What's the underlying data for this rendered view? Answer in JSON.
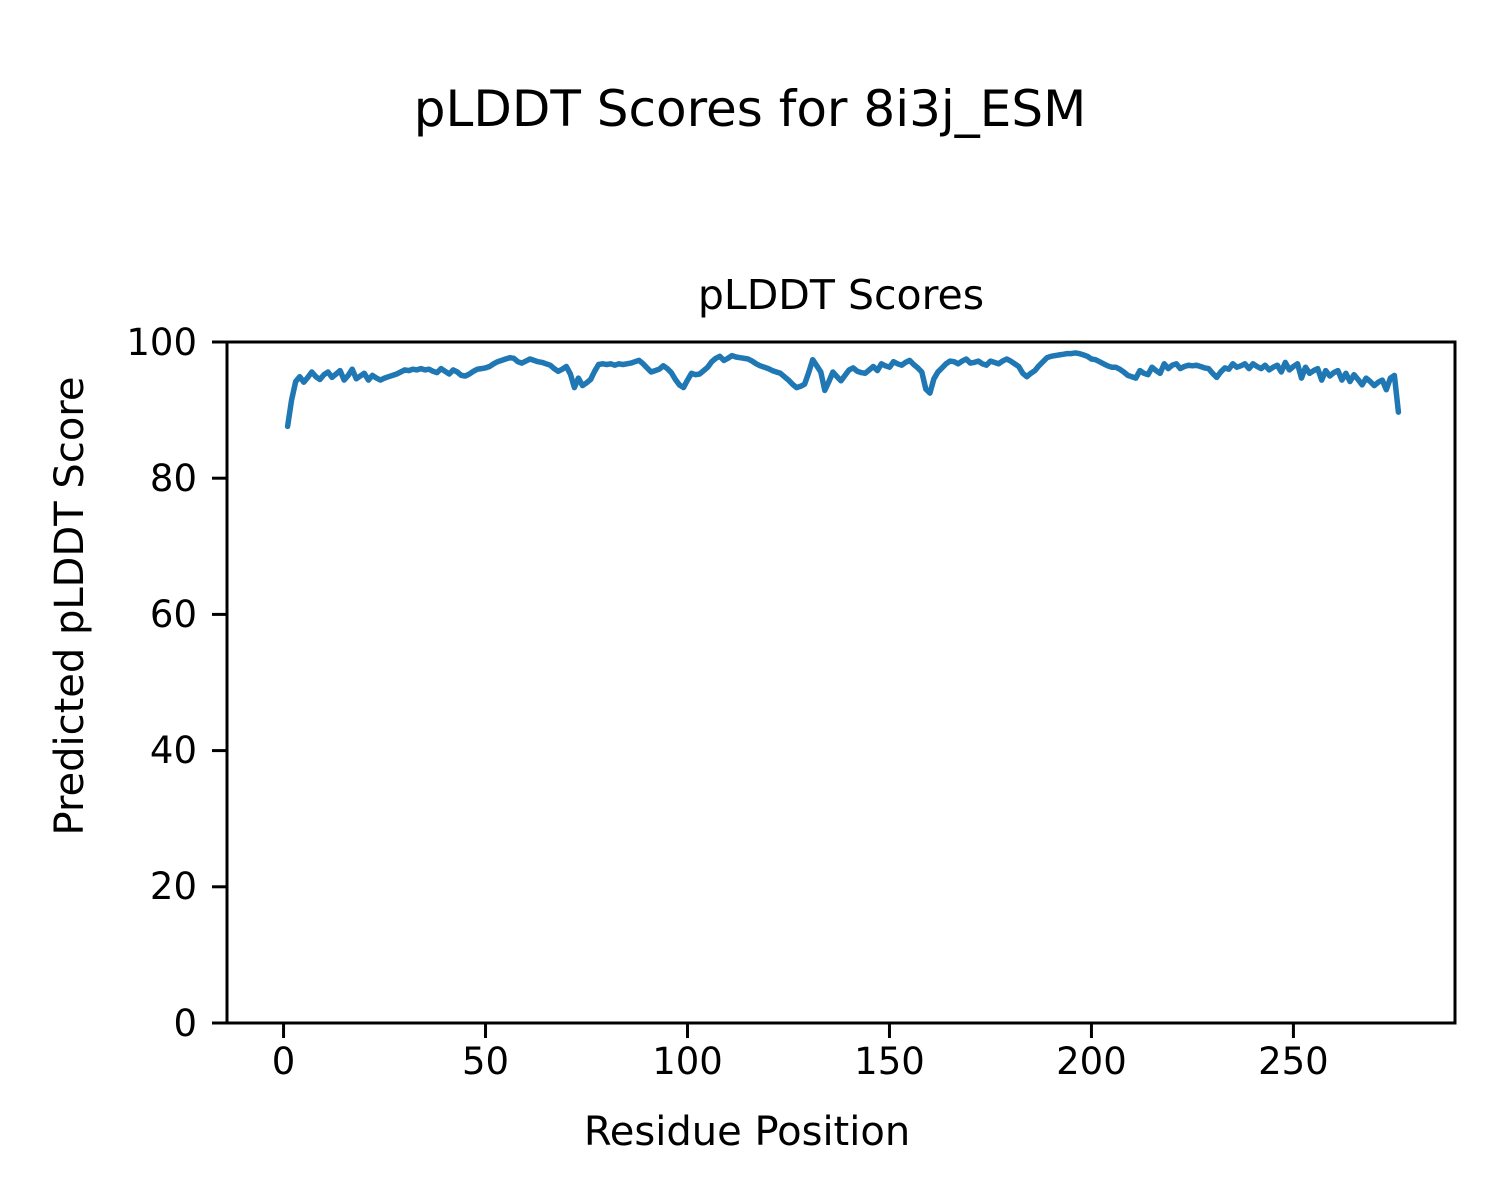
{
  "figure": {
    "suptitle": "pLDDT Scores for 8i3j_ESM",
    "background_color": "#ffffff",
    "text_color": "#000000"
  },
  "chart_data": {
    "type": "line",
    "title": "pLDDT Scores",
    "xlabel": "Residue Position",
    "ylabel": "Predicted pLDDT Score",
    "xlim": [
      -14,
      290
    ],
    "ylim": [
      0,
      100
    ],
    "xticks": [
      0,
      50,
      100,
      150,
      200,
      250
    ],
    "yticks": [
      0,
      20,
      40,
      60,
      80,
      100
    ],
    "grid": false,
    "legend": "none",
    "line_color": "#1f77b4",
    "line_width": 5.5,
    "axis_color": "#000000",
    "series": [
      {
        "name": "pLDDT",
        "x_start": 1,
        "x_step": 1,
        "y": [
          87.6,
          91.5,
          94.2,
          94.9,
          94.1,
          94.8,
          95.6,
          94.9,
          94.5,
          95.2,
          95.6,
          94.8,
          95.3,
          95.8,
          94.4,
          95.1,
          96.0,
          94.6,
          95.0,
          95.4,
          94.4,
          95.1,
          94.7,
          94.4,
          94.7,
          94.9,
          95.1,
          95.3,
          95.6,
          95.9,
          95.8,
          96.0,
          95.9,
          96.1,
          95.9,
          96.0,
          95.7,
          95.5,
          96.1,
          95.7,
          95.3,
          95.9,
          95.6,
          95.1,
          95.0,
          95.3,
          95.7,
          96.0,
          96.1,
          96.2,
          96.4,
          96.8,
          97.1,
          97.3,
          97.5,
          97.7,
          97.6,
          97.1,
          96.9,
          97.2,
          97.5,
          97.3,
          97.1,
          97.0,
          96.8,
          96.6,
          96.1,
          95.7,
          96.0,
          96.4,
          95.3,
          93.3,
          94.7,
          93.6,
          94.0,
          94.5,
          95.7,
          96.7,
          96.8,
          96.7,
          96.8,
          96.6,
          96.8,
          96.7,
          96.8,
          96.9,
          97.1,
          97.3,
          96.8,
          96.2,
          95.6,
          95.8,
          96.0,
          96.5,
          96.1,
          95.5,
          94.5,
          93.7,
          93.3,
          94.4,
          95.4,
          95.2,
          95.3,
          95.8,
          96.3,
          97.1,
          97.6,
          97.9,
          97.3,
          97.6,
          98.0,
          97.8,
          97.7,
          97.6,
          97.5,
          97.2,
          96.8,
          96.5,
          96.3,
          96.1,
          95.8,
          95.6,
          95.4,
          94.9,
          94.4,
          93.8,
          93.3,
          93.5,
          93.8,
          95.5,
          97.4,
          96.5,
          95.6,
          92.9,
          94.2,
          95.6,
          94.9,
          94.3,
          95.1,
          95.9,
          96.2,
          95.7,
          95.5,
          95.4,
          95.9,
          96.4,
          95.8,
          96.8,
          96.5,
          96.3,
          97.1,
          96.8,
          96.6,
          97.0,
          97.3,
          96.7,
          96.2,
          95.6,
          93.1,
          92.5,
          94.6,
          95.6,
          96.2,
          96.8,
          97.2,
          97.1,
          96.8,
          97.2,
          97.5,
          96.9,
          97.0,
          97.2,
          96.8,
          96.6,
          97.2,
          97.0,
          96.8,
          97.2,
          97.5,
          97.2,
          96.8,
          96.4,
          95.4,
          94.9,
          95.4,
          95.8,
          96.5,
          97.1,
          97.7,
          97.9,
          98.0,
          98.1,
          98.2,
          98.3,
          98.3,
          98.4,
          98.3,
          98.1,
          97.9,
          97.5,
          97.4,
          97.1,
          96.8,
          96.5,
          96.3,
          96.3,
          96.0,
          95.6,
          95.1,
          94.9,
          94.7,
          95.8,
          95.4,
          95.2,
          96.3,
          95.8,
          95.4,
          96.8,
          96.1,
          96.6,
          96.8,
          96.1,
          96.4,
          96.6,
          96.5,
          96.6,
          96.4,
          96.2,
          96.1,
          95.4,
          94.8,
          95.6,
          96.2,
          96.0,
          96.8,
          96.3,
          96.5,
          96.8,
          96.1,
          96.8,
          96.4,
          96.1,
          96.6,
          95.9,
          96.3,
          96.6,
          95.6,
          97.0,
          95.9,
          96.4,
          96.8,
          94.7,
          96.3,
          95.4,
          95.8,
          96.1,
          94.4,
          95.8,
          95.0,
          95.5,
          95.8,
          94.4,
          95.4,
          94.2,
          95.2,
          94.5,
          93.7,
          94.7,
          94.2,
          93.6,
          94.1,
          94.4,
          93.0,
          94.7,
          95.1,
          89.7
        ]
      }
    ]
  }
}
